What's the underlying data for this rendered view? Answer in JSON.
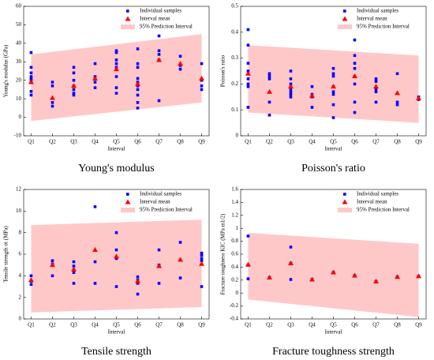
{
  "chart_data": [
    {
      "type": "scatter",
      "caption": "Young's modulus",
      "xlabel": "Interval",
      "ylabel": "Young's modulus (GPa)",
      "categories": [
        "Q1",
        "Q2",
        "Q3",
        "Q4",
        "Q5",
        "Q6",
        "Q7",
        "Q8",
        "Q9"
      ],
      "ylim": [
        -10,
        60
      ],
      "yticks": [
        -10,
        0,
        10,
        20,
        30,
        40,
        50,
        60
      ],
      "legend": "upper right",
      "series": [
        {
          "name": "Individual samples",
          "color": "#0000ff",
          "marker": "square",
          "x": [
            "Q1",
            "Q1",
            "Q1",
            "Q1",
            "Q1",
            "Q1",
            "Q1",
            "Q1",
            "Q2",
            "Q2",
            "Q2",
            "Q2",
            "Q3",
            "Q3",
            "Q3",
            "Q3",
            "Q3",
            "Q3",
            "Q3",
            "Q4",
            "Q4",
            "Q4",
            "Q4",
            "Q5",
            "Q5",
            "Q5",
            "Q5",
            "Q5",
            "Q5",
            "Q5",
            "Q5",
            "Q6",
            "Q6",
            "Q6",
            "Q6",
            "Q6",
            "Q6",
            "Q6",
            "Q6",
            "Q6",
            "Q6",
            "Q7",
            "Q7",
            "Q7",
            "Q7",
            "Q7",
            "Q8",
            "Q8",
            "Q8",
            "Q9",
            "Q9",
            "Q9",
            "Q9"
          ],
          "values": [
            35,
            27,
            24,
            22,
            21,
            20,
            14,
            12,
            19,
            17,
            8,
            6,
            27,
            24,
            20,
            17,
            15,
            13,
            12,
            29,
            22,
            19,
            16,
            36,
            35,
            31,
            29,
            27,
            22,
            16,
            13,
            37,
            29,
            27,
            21,
            19,
            17,
            15,
            12,
            8,
            5,
            44,
            36,
            34,
            31,
            9,
            33,
            28,
            26,
            29,
            20,
            17,
            15
          ]
        },
        {
          "name": "Interval mean",
          "color": "#ff0000",
          "marker": "triangle",
          "x": [
            "Q1",
            "Q2",
            "Q3",
            "Q4",
            "Q5",
            "Q6",
            "Q7",
            "Q8",
            "Q9"
          ],
          "values": [
            19,
            10.5,
            17,
            21,
            26,
            18,
            31,
            29,
            21
          ]
        },
        {
          "name": "95% Prediction Interval",
          "color": "#ffc8c8",
          "marker": "band",
          "x": [
            "Q1",
            "Q9"
          ],
          "lower": [
            -2,
            8
          ],
          "upper": [
            34,
            45
          ]
        }
      ]
    },
    {
      "type": "scatter",
      "caption": "Poisson's ratio",
      "xlabel": "Interval",
      "ylabel": "Poisson's ratio",
      "categories": [
        "Q1",
        "Q2",
        "Q3",
        "Q4",
        "Q5",
        "Q6",
        "Q7",
        "Q8",
        "Q9"
      ],
      "ylim": [
        0,
        0.5
      ],
      "yticks": [
        0,
        0.1,
        0.2,
        0.3,
        0.4,
        0.5
      ],
      "legend": "upper right",
      "series": [
        {
          "name": "Individual samples",
          "color": "#0000ff",
          "marker": "square",
          "x": [
            "Q1",
            "Q1",
            "Q1",
            "Q1",
            "Q1",
            "Q1",
            "Q1",
            "Q1",
            "Q2",
            "Q2",
            "Q2",
            "Q2",
            "Q2",
            "Q3",
            "Q3",
            "Q3",
            "Q3",
            "Q3",
            "Q3",
            "Q3",
            "Q4",
            "Q4",
            "Q4",
            "Q4",
            "Q5",
            "Q5",
            "Q5",
            "Q5",
            "Q5",
            "Q5",
            "Q5",
            "Q5",
            "Q6",
            "Q6",
            "Q6",
            "Q6",
            "Q6",
            "Q6",
            "Q6",
            "Q6",
            "Q7",
            "Q7",
            "Q7",
            "Q7",
            "Q7",
            "Q8",
            "Q8",
            "Q8",
            "Q9",
            "Q9"
          ],
          "values": [
            0.41,
            0.35,
            0.28,
            0.25,
            0.22,
            0.2,
            0.19,
            0.11,
            0.24,
            0.23,
            0.22,
            0.13,
            0.08,
            0.25,
            0.22,
            0.2,
            0.18,
            0.17,
            0.16,
            0.15,
            0.19,
            0.16,
            0.15,
            0.11,
            0.26,
            0.24,
            0.23,
            0.19,
            0.17,
            0.16,
            0.12,
            0.07,
            0.37,
            0.31,
            0.28,
            0.26,
            0.23,
            0.2,
            0.13,
            0.09,
            0.22,
            0.21,
            0.18,
            0.17,
            0.13,
            0.24,
            0.13,
            0.12,
            0.15,
            0.14
          ]
        },
        {
          "name": "Interval mean",
          "color": "#ff0000",
          "marker": "triangle",
          "x": [
            "Q1",
            "Q2",
            "Q3",
            "Q4",
            "Q5",
            "Q6",
            "Q7",
            "Q8",
            "Q9"
          ],
          "values": [
            0.24,
            0.17,
            0.19,
            0.155,
            0.19,
            0.23,
            0.19,
            0.165,
            0.145
          ]
        },
        {
          "name": "95% Prediction Interval",
          "color": "#ffc8c8",
          "marker": "band",
          "x": [
            "Q1",
            "Q9"
          ],
          "lower": [
            0.09,
            0.05
          ],
          "upper": [
            0.35,
            0.31
          ]
        }
      ]
    },
    {
      "type": "scatter",
      "caption": "Tensile strength",
      "xlabel": "Interval",
      "ylabel": "Tensile strength σt (MPa)",
      "categories": [
        "Q1",
        "Q2",
        "Q3",
        "Q4",
        "Q5",
        "Q6",
        "Q7",
        "Q8",
        "Q9"
      ],
      "ylim": [
        0,
        12
      ],
      "yticks": [
        0,
        2,
        4,
        6,
        8,
        10,
        12
      ],
      "legend": "upper right",
      "series": [
        {
          "name": "Individual samples",
          "color": "#0000ff",
          "marker": "square",
          "x": [
            "Q1",
            "Q1",
            "Q1",
            "Q2",
            "Q2",
            "Q2",
            "Q3",
            "Q3",
            "Q3",
            "Q3",
            "Q4",
            "Q4",
            "Q4",
            "Q5",
            "Q5",
            "Q5",
            "Q5",
            "Q6",
            "Q6",
            "Q6",
            "Q6",
            "Q7",
            "Q7",
            "Q7",
            "Q8",
            "Q8",
            "Q9",
            "Q9",
            "Q9",
            "Q9",
            "Q9"
          ],
          "values": [
            4.0,
            3.5,
            3.2,
            5.4,
            5.1,
            4.0,
            5.3,
            4.9,
            4.3,
            3.3,
            10.4,
            5.3,
            3.3,
            8.0,
            6.4,
            5.6,
            3.0,
            3.9,
            3.6,
            3.3,
            2.3,
            6.4,
            5.0,
            3.3,
            7.1,
            3.8,
            6.1,
            5.9,
            5.6,
            5.4,
            3.0
          ]
        },
        {
          "name": "Interval mean",
          "color": "#ff0000",
          "marker": "triangle",
          "x": [
            "Q1",
            "Q2",
            "Q3",
            "Q4",
            "Q5",
            "Q6",
            "Q7",
            "Q8",
            "Q9"
          ],
          "values": [
            3.6,
            5.0,
            4.6,
            6.4,
            5.8,
            3.5,
            4.9,
            5.5,
            5.1
          ]
        },
        {
          "name": "95% Prediction Interval",
          "color": "#ffc8c8",
          "marker": "band",
          "x": [
            "Q1",
            "Q9"
          ],
          "lower": [
            0.6,
            1.1
          ],
          "upper": [
            8.7,
            9.2
          ]
        }
      ]
    },
    {
      "type": "scatter",
      "caption": "Fracture toughness strength",
      "xlabel": "Interval",
      "ylabel": "Fracture toughness KIC (MPa m1/2)",
      "categories": [
        "Q1",
        "Q2",
        "Q3",
        "Q4",
        "Q5",
        "Q6",
        "Q7",
        "Q8",
        "Q9"
      ],
      "ylim": [
        -0.4,
        1.6
      ],
      "yticks": [
        -0.4,
        -0.2,
        0,
        0.2,
        0.4,
        0.6,
        0.8,
        1,
        1.2,
        1.4,
        1.6
      ],
      "legend": "upper right",
      "series": [
        {
          "name": "Individual samples",
          "color": "#0000ff",
          "marker": "square",
          "x": [
            "Q1",
            "Q1",
            "Q1",
            "Q2",
            "Q3",
            "Q3",
            "Q3",
            "Q4",
            "Q5",
            "Q6",
            "Q7",
            "Q8",
            "Q9"
          ],
          "values": [
            0.88,
            0.43,
            0.22,
            0.24,
            0.71,
            0.46,
            0.21,
            0.21,
            0.32,
            0.27,
            0.18,
            0.25,
            0.26
          ]
        },
        {
          "name": "Interval mean",
          "color": "#ff0000",
          "marker": "triangle",
          "x": [
            "Q1",
            "Q2",
            "Q3",
            "Q4",
            "Q5",
            "Q6",
            "Q7",
            "Q8",
            "Q9"
          ],
          "values": [
            0.44,
            0.24,
            0.46,
            0.21,
            0.32,
            0.27,
            0.18,
            0.25,
            0.26
          ]
        },
        {
          "name": "95% Prediction Interval",
          "color": "#ffc8c8",
          "marker": "band",
          "x": [
            "Q1",
            "Q9"
          ],
          "lower": [
            -0.1,
            -0.37
          ],
          "upper": [
            0.93,
            0.76
          ]
        }
      ]
    }
  ]
}
